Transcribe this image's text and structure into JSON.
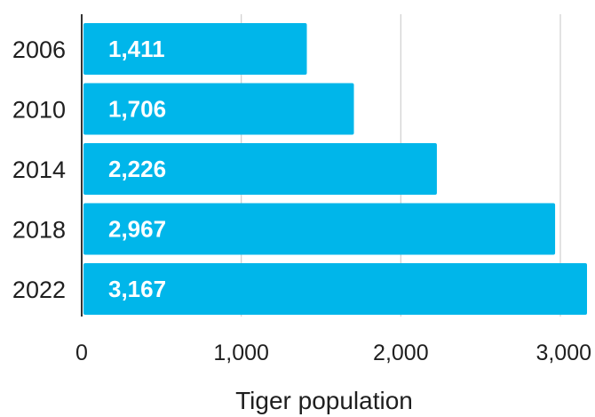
{
  "chart_data": {
    "type": "bar",
    "orientation": "horizontal",
    "categories": [
      "2006",
      "2010",
      "2014",
      "2018",
      "2022"
    ],
    "values": [
      1411,
      1706,
      2226,
      2967,
      3167
    ],
    "value_labels": [
      "1,411",
      "1,706",
      "2,226",
      "2,967",
      "3,167"
    ],
    "xlabel": "Tiger population",
    "ylabel": "",
    "title": "",
    "xlim": [
      0,
      3167
    ],
    "ticks": [
      0,
      1000,
      2000,
      3000
    ],
    "tick_labels": [
      "0",
      "1,000",
      "2,000",
      "3,000"
    ],
    "grid": "vertical",
    "legend": "none"
  },
  "colors": {
    "bar": "#00b6ea",
    "value_text": "#ffffff",
    "grid": "#cfcfcf",
    "axis": "#333333",
    "text": "#1f1f1f"
  }
}
